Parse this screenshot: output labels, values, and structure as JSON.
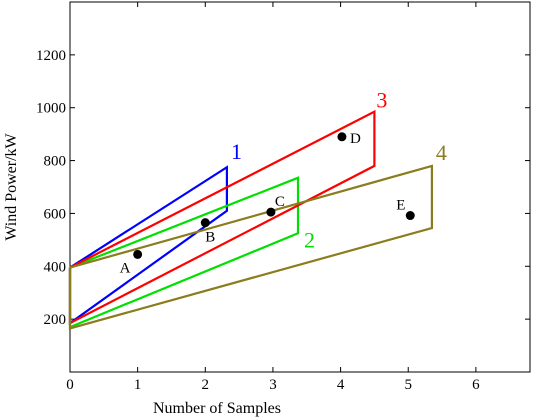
{
  "chart_data": {
    "type": "line",
    "title": "",
    "xlabel": "Number of Samples",
    "ylabel": "Wind Power/kW",
    "xlim": [
      0,
      6.8
    ],
    "ylim": [
      0,
      1400
    ],
    "xticks": [
      0,
      1,
      2,
      3,
      4,
      5,
      6
    ],
    "yticks": [
      200,
      400,
      600,
      800,
      1000,
      1200
    ],
    "grid": false,
    "series": [
      {
        "name": "1",
        "color": "#0000ff",
        "points": [
          [
            0,
            395
          ],
          [
            2.32,
            775
          ],
          [
            2.32,
            610
          ],
          [
            0,
            185
          ],
          [
            0,
            395
          ]
        ]
      },
      {
        "name": "2",
        "color": "#00e000",
        "points": [
          [
            0,
            395
          ],
          [
            3.37,
            735
          ],
          [
            3.37,
            525
          ],
          [
            0,
            170
          ],
          [
            0,
            395
          ]
        ]
      },
      {
        "name": "3",
        "color": "#ff0000",
        "points": [
          [
            0,
            395
          ],
          [
            4.5,
            985
          ],
          [
            4.5,
            780
          ],
          [
            0,
            185
          ],
          [
            0,
            395
          ]
        ]
      },
      {
        "name": "4",
        "color": "#8b7d1e",
        "points": [
          [
            0,
            395
          ],
          [
            5.35,
            780
          ],
          [
            5.35,
            545
          ],
          [
            0,
            165
          ],
          [
            0,
            395
          ]
        ]
      }
    ],
    "annotations": [
      {
        "label": "A",
        "x": 1.0,
        "y": 445
      },
      {
        "label": "B",
        "x": 2.0,
        "y": 565
      },
      {
        "label": "C",
        "x": 2.97,
        "y": 605
      },
      {
        "label": "D",
        "x": 4.02,
        "y": 890
      },
      {
        "label": "E",
        "x": 5.03,
        "y": 592
      }
    ]
  }
}
